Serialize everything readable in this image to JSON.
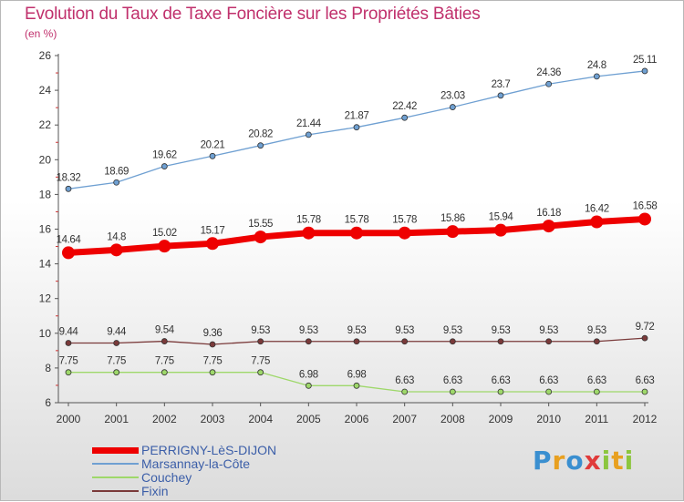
{
  "chart_data": {
    "type": "line",
    "title": "Evolution du Taux de Taxe Foncière sur les Propriétés Bâties",
    "unit_label": "(en %)",
    "x": [
      "2000",
      "2001",
      "2002",
      "2003",
      "2004",
      "2005",
      "2006",
      "2007",
      "2008",
      "2009",
      "2010",
      "2011",
      "2012"
    ],
    "ylim": [
      6,
      26
    ],
    "yticks": [
      6,
      8,
      10,
      12,
      14,
      16,
      18,
      20,
      22,
      24,
      26
    ],
    "grid": false,
    "legend_position": "bottom-left",
    "series": [
      {
        "name": "PERRIGNY-LèS-DIJON",
        "color": "#ee0000",
        "values": [
          14.64,
          14.8,
          15.02,
          15.17,
          15.55,
          15.78,
          15.78,
          15.78,
          15.86,
          15.94,
          16.18,
          16.42,
          16.58
        ],
        "labels": [
          "14.64",
          "14.8",
          "15.02",
          "15.17",
          "15.55",
          "15.78",
          "15.78",
          "15.78",
          "15.86",
          "15.94",
          "16.18",
          "16.42",
          "16.58"
        ]
      },
      {
        "name": "Marsannay-la-Côte",
        "color": "#6fa0d2",
        "values": [
          18.32,
          18.69,
          19.62,
          20.21,
          20.82,
          21.44,
          21.87,
          22.42,
          23.03,
          23.7,
          24.36,
          24.8,
          25.11
        ],
        "labels": [
          "18.32",
          "18.69",
          "19.62",
          "20.21",
          "20.82",
          "21.44",
          "21.87",
          "22.42",
          "23.03",
          "23.7",
          "24.36",
          "24.8",
          "25.11"
        ]
      },
      {
        "name": "Couchey",
        "color": "#9ed86a",
        "values": [
          7.75,
          7.75,
          7.75,
          7.75,
          7.75,
          6.98,
          6.98,
          6.63,
          6.63,
          6.63,
          6.63,
          6.63,
          6.63
        ],
        "labels": [
          "7.75",
          "7.75",
          "7.75",
          "7.75",
          "7.75",
          "6.98",
          "6.98",
          "6.63",
          "6.63",
          "6.63",
          "6.63",
          "6.63",
          "6.63"
        ]
      },
      {
        "name": "Fixin",
        "color": "#7a3a3a",
        "values": [
          9.44,
          9.44,
          9.54,
          9.36,
          9.53,
          9.53,
          9.53,
          9.53,
          9.53,
          9.53,
          9.53,
          9.53,
          9.72
        ],
        "labels": [
          "9.44",
          "9.44",
          "9.54",
          "9.36",
          "9.53",
          "9.53",
          "9.53",
          "9.53",
          "9.53",
          "9.53",
          "9.53",
          "9.53",
          "9.72"
        ]
      }
    ]
  },
  "logo": {
    "letters": [
      "P",
      "r",
      "o",
      "x",
      "i",
      "t",
      "i"
    ],
    "colors": [
      "#3a8fd0",
      "#e8a020",
      "#3a8fd0",
      "#e03a3a",
      "#8cc63e",
      "#e8a020",
      "#8cc63e"
    ]
  }
}
